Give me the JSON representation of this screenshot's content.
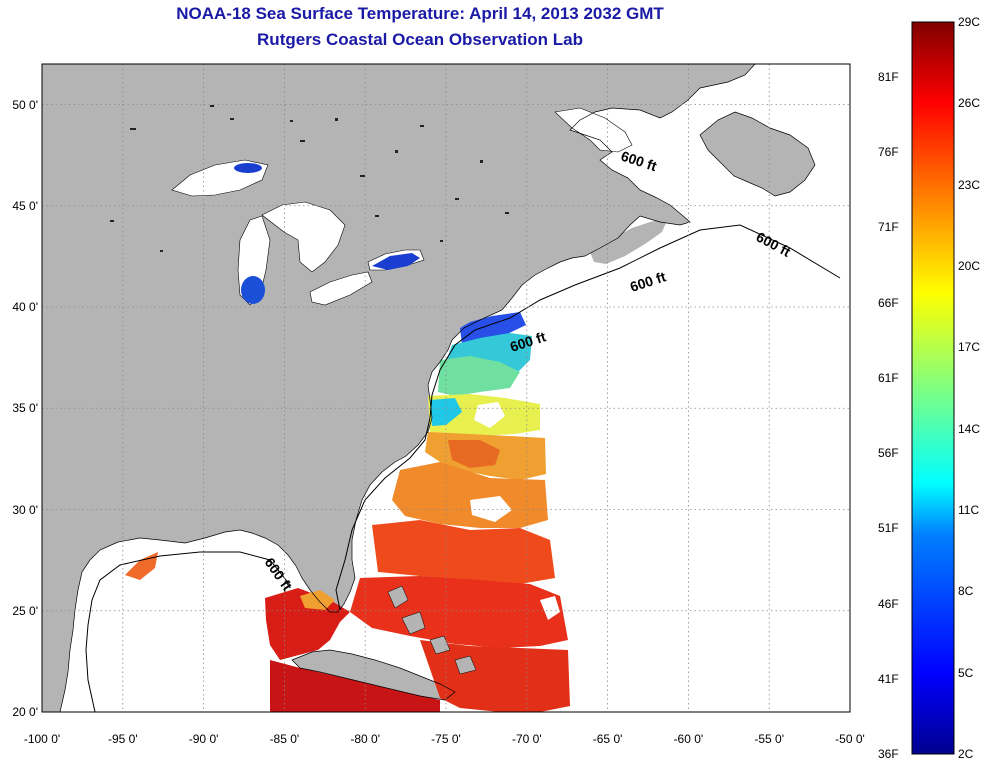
{
  "title": "NOAA-18 Sea Surface Temperature:  April 14, 2013 2032 GMT",
  "subtitle": "Rutgers Coastal Ocean Observation Lab",
  "map": {
    "lon_range": [
      -100,
      -50
    ],
    "lat_range": [
      20,
      52
    ],
    "x_ticks": [
      {
        "lon": -100,
        "label": "-100 0'"
      },
      {
        "lon": -95,
        "label": "-95 0'"
      },
      {
        "lon": -90,
        "label": "-90 0'"
      },
      {
        "lon": -85,
        "label": "-85 0'"
      },
      {
        "lon": -80,
        "label": "-80 0'"
      },
      {
        "lon": -75,
        "label": "-75 0'"
      },
      {
        "lon": -70,
        "label": "-70 0'"
      },
      {
        "lon": -65,
        "label": "-65 0'"
      },
      {
        "lon": -60,
        "label": "-60 0'"
      },
      {
        "lon": -55,
        "label": "-55 0'"
      },
      {
        "lon": -50,
        "label": "-50 0'"
      }
    ],
    "y_ticks": [
      {
        "lat": 20,
        "label": "20 0'"
      },
      {
        "lat": 25,
        "label": "25 0'"
      },
      {
        "lat": 30,
        "label": "30 0'"
      },
      {
        "lat": 35,
        "label": "35 0'"
      },
      {
        "lat": 40,
        "label": "40 0'"
      },
      {
        "lat": 45,
        "label": "45 0'"
      },
      {
        "lat": 50,
        "label": "50 0'"
      }
    ],
    "contour_label": "600 ft",
    "colors": {
      "land": "#b4b4b4",
      "ocean": "#ffffff",
      "grid": "#999999"
    }
  },
  "colorbar": {
    "celsius": [
      "29C",
      "26C",
      "23C",
      "20C",
      "17C",
      "14C",
      "11C",
      "8C",
      "5C",
      "2C"
    ],
    "fahrenheit": [
      "81F",
      "76F",
      "71F",
      "66F",
      "61F",
      "56F",
      "51F",
      "46F",
      "41F",
      "36F"
    ],
    "colors": [
      "#800000",
      "#ff0000",
      "#ff8000",
      "#ffff00",
      "#80ff80",
      "#00ffff",
      "#0080ff",
      "#0000ff",
      "#00008f"
    ]
  }
}
